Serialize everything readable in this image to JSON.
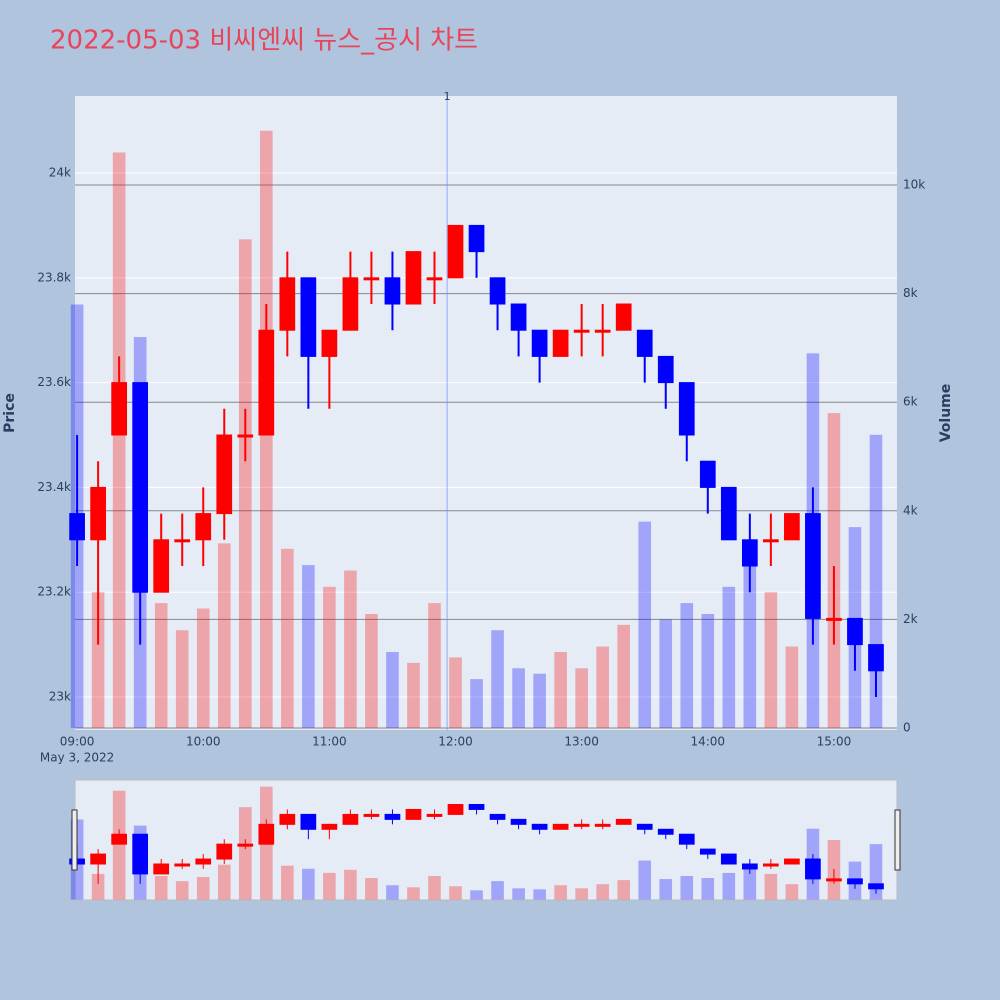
{
  "chart_data": {
    "type": "candlestick",
    "title": "2022-05-03 비씨엔씨 뉴스_공시 차트",
    "ylabel": "Price",
    "y2label": "Volume",
    "increasing_color": "#ff0000",
    "decreasing_color": "#0000ff",
    "x": [
      "09:00",
      "09:10",
      "09:20",
      "09:30",
      "09:40",
      "09:50",
      "10:00",
      "10:10",
      "10:20",
      "10:30",
      "10:40",
      "10:50",
      "11:00",
      "11:10",
      "11:20",
      "11:30",
      "11:40",
      "11:50",
      "12:00",
      "12:10",
      "12:20",
      "12:30",
      "12:40",
      "12:50",
      "13:00",
      "13:10",
      "13:20",
      "13:30",
      "13:40",
      "13:50",
      "14:00",
      "14:10",
      "14:20",
      "14:30",
      "14:40",
      "14:50",
      "15:00",
      "15:10",
      "15:20"
    ],
    "open": [
      23350,
      23300,
      23500,
      23600,
      23200,
      23300,
      23300,
      23350,
      23500,
      23500,
      23700,
      23800,
      23650,
      23700,
      23800,
      23800,
      23750,
      23800,
      23800,
      23900,
      23800,
      23750,
      23700,
      23650,
      23700,
      23700,
      23700,
      23700,
      23650,
      23600,
      23450,
      23400,
      23300,
      23300,
      23300,
      23350,
      23150,
      23150,
      23100
    ],
    "high": [
      23500,
      23450,
      23650,
      23600,
      23350,
      23350,
      23400,
      23550,
      23550,
      23750,
      23850,
      23800,
      23700,
      23850,
      23850,
      23850,
      23850,
      23850,
      23900,
      23900,
      23800,
      23750,
      23700,
      23700,
      23750,
      23750,
      23750,
      23700,
      23650,
      23600,
      23450,
      23400,
      23350,
      23350,
      23350,
      23400,
      23250,
      23150,
      23100
    ],
    "low": [
      23250,
      23100,
      23500,
      23100,
      23200,
      23250,
      23250,
      23300,
      23450,
      23500,
      23650,
      23550,
      23550,
      23700,
      23750,
      23700,
      23750,
      23750,
      23800,
      23800,
      23700,
      23650,
      23600,
      23650,
      23650,
      23650,
      23700,
      23600,
      23550,
      23450,
      23350,
      23300,
      23200,
      23250,
      23300,
      23100,
      23100,
      23050,
      23000
    ],
    "close": [
      23300,
      23400,
      23600,
      23200,
      23300,
      23300,
      23350,
      23500,
      23500,
      23700,
      23800,
      23650,
      23700,
      23800,
      23800,
      23750,
      23850,
      23800,
      23900,
      23850,
      23750,
      23700,
      23650,
      23700,
      23700,
      23700,
      23750,
      23650,
      23600,
      23500,
      23400,
      23300,
      23250,
      23300,
      23350,
      23150,
      23150,
      23100,
      23050
    ],
    "volume": [
      7800,
      2500,
      10600,
      7200,
      2300,
      1800,
      2200,
      3400,
      9000,
      11000,
      3300,
      3000,
      2600,
      2900,
      2100,
      1400,
      1200,
      2300,
      1300,
      900,
      1800,
      1100,
      1000,
      1400,
      1100,
      1500,
      1900,
      3800,
      2000,
      2300,
      2100,
      2600,
      3000,
      2500,
      1500,
      6900,
      5800,
      3700,
      5400
    ],
    "xlim": [
      "08:59",
      "15:30"
    ],
    "xticks": [
      "09:00",
      "10:00",
      "11:00",
      "12:00",
      "13:00",
      "14:00",
      "15:00"
    ],
    "xdate_label": "May 3, 2022",
    "ylim": [
      22937,
      24147
    ],
    "yticks": [
      {
        "value": 23000,
        "label": "23k"
      },
      {
        "value": 23200,
        "label": "23.2k"
      },
      {
        "value": 23400,
        "label": "23.4k"
      },
      {
        "value": 23600,
        "label": "23.6k"
      },
      {
        "value": 23800,
        "label": "23.8k"
      },
      {
        "value": 24000,
        "label": "24k"
      }
    ],
    "y2lim": [
      -37,
      11640
    ],
    "y2ticks": [
      0,
      {
        "value": 2000,
        "label": "2k"
      },
      {
        "value": 4000,
        "label": "4k"
      },
      {
        "value": 6000,
        "label": "6k"
      },
      {
        "value": 8000,
        "label": "8k"
      },
      {
        "value": 10000,
        "label": "10k"
      }
    ],
    "annotation": {
      "x": "11:56",
      "text": "1"
    },
    "rangeslider": true
  }
}
